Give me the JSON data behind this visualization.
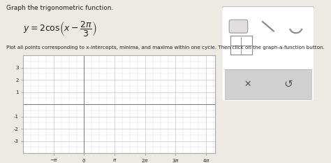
{
  "title_text": "Graph the trigonometric function.",
  "formula_latex": "$y=2\\cos\\!\\left(x-\\dfrac{2\\pi}{3}\\right)$",
  "instruction_text": "Plot all points corresponding to x-intercepts, minima, and maxima within one cycle. Then click on the graph-a-function button.",
  "graph_xlim": [
    -5.0,
    13.5
  ],
  "graph_ylim": [
    -4,
    4
  ],
  "x_tick_positions": [
    -3.14159,
    0,
    3.14159,
    6.28318,
    9.42478,
    12.56637
  ],
  "y_tick_positions": [
    -3,
    -2,
    -1,
    1,
    2,
    3
  ],
  "bg_color": "#ede9e3",
  "plot_bg_color": "#ffffff",
  "grid_color": "#c8c8c8",
  "border_color": "#aaaaaa",
  "text_color": "#222222",
  "panel_white": "#ffffff",
  "panel_gray": "#d0d0d0",
  "panel_border": "#bbbbbb",
  "pi": 3.14159265358979
}
